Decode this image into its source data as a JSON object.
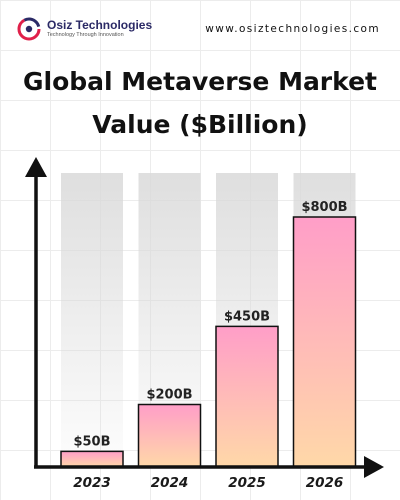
{
  "brand": {
    "name": "Osiz Technologies",
    "tagline": "Technology Through Innovation",
    "logo_icon": "osiz-logo-icon"
  },
  "site_url": "www.osiztechnologies.com",
  "title_line1": "Global Metaverse Market",
  "title_line2": "Value ($Billion)",
  "colors": {
    "bar_top": "#ff9ec8",
    "bar_bottom": "#ffd8a8",
    "bar_stroke": "#111111",
    "background_column": "#d9d9d9",
    "axis": "#111111"
  },
  "chart_data": {
    "type": "bar",
    "title": "Global Metaverse Market Value ($Billion)",
    "categories": [
      "2023",
      "2024",
      "2025",
      "2026"
    ],
    "values": [
      50,
      200,
      450,
      800
    ],
    "value_labels": [
      "$50B",
      "$200B",
      "$450B",
      "$800B"
    ],
    "xlabel": "",
    "ylabel": "",
    "ylim": [
      0,
      1000
    ],
    "grid": true,
    "legend": "none"
  }
}
